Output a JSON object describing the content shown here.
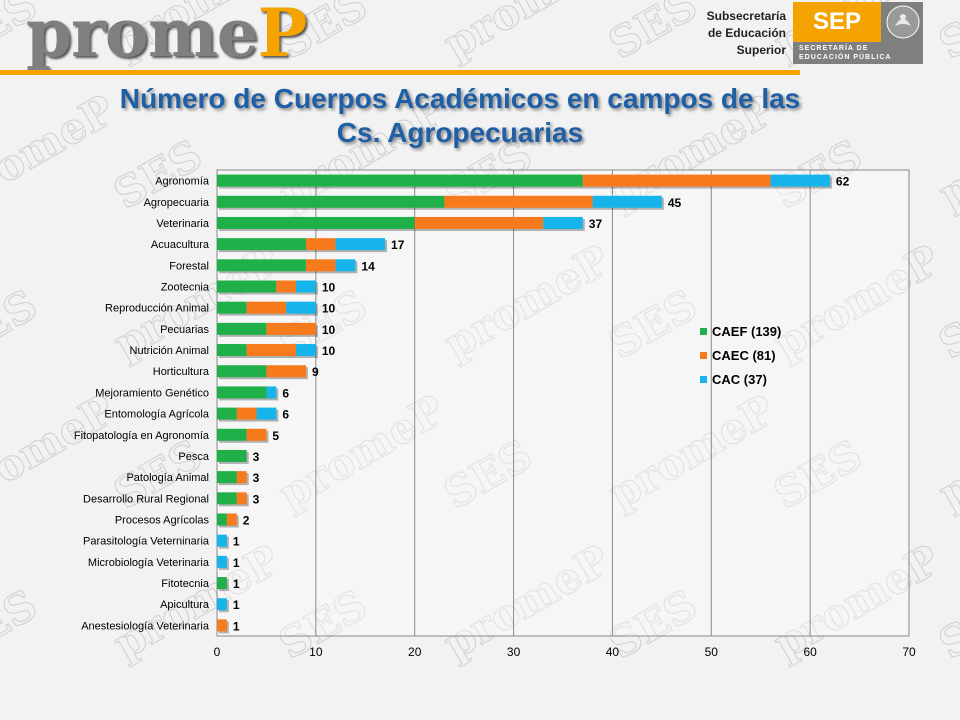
{
  "header": {
    "logo": {
      "part1": "prome",
      "part2": "P"
    },
    "subsecretaria": [
      "Subsecretaría",
      "de Educación",
      "Superior"
    ],
    "sep": {
      "word": "SEP",
      "line1": "SECRETARÍA DE",
      "line2": "EDUCACIÓN PÚBLICA"
    }
  },
  "title_lines": [
    "Número de Cuerpos Académicos en campos de las",
    "Cs. Agropecuarias"
  ],
  "watermark_text": [
    "SES",
    "promeP"
  ],
  "colors": {
    "CAEF": "#1fb04a",
    "CAEC": "#f77a1c",
    "CAC": "#15b4ea",
    "title": "#1f5fa6",
    "accent": "#f4a300"
  },
  "chart_data": {
    "type": "bar",
    "orientation": "horizontal",
    "stacked": true,
    "categories": [
      "Agronomía",
      "Agropecuaria",
      "Veterinaria",
      "Acuacultura",
      "Forestal",
      "Zootecnia",
      "Reproducción Animal",
      "Pecuarias",
      "Nutrición Animal",
      "Horticultura",
      "Mejoramiento Genético",
      "Entomología Agrícola",
      "Fitopatología en Agronomía",
      "Pesca",
      "Patología Animal",
      "Desarrollo Rural Regional",
      "Procesos Agrícolas",
      "Parasitología Veterninaria",
      "Microbiología Veterinaria",
      "Fitotecnia",
      "Apicultura",
      "Anestesiología Veterinaria"
    ],
    "series": [
      {
        "name": "CAEF (139)",
        "values": [
          37,
          23,
          20,
          9,
          9,
          6,
          3,
          5,
          3,
          5,
          5,
          2,
          3,
          3,
          2,
          2,
          1,
          0,
          0,
          1,
          0,
          0
        ]
      },
      {
        "name": "CAEC (81)",
        "values": [
          19,
          15,
          13,
          3,
          3,
          2,
          4,
          5,
          5,
          4,
          0,
          2,
          2,
          0,
          1,
          1,
          1,
          0,
          0,
          0,
          0,
          1
        ]
      },
      {
        "name": "CAC (37)",
        "values": [
          6,
          7,
          4,
          5,
          2,
          2,
          3,
          0,
          2,
          0,
          1,
          2,
          0,
          0,
          0,
          0,
          0,
          1,
          1,
          0,
          1,
          0
        ]
      }
    ],
    "totals": [
      "62",
      "45",
      "37",
      "17",
      "14",
      "10",
      "10",
      "10",
      "10",
      "9",
      "6",
      "6",
      "5",
      "3",
      "3",
      "3",
      "2",
      "1",
      "1",
      "1",
      "1",
      "1"
    ],
    "xlim": [
      0,
      70
    ],
    "xticks": [
      "0",
      "10",
      "20",
      "30",
      "40",
      "50",
      "60",
      "70"
    ],
    "grid": "vertical",
    "legend": "right"
  }
}
